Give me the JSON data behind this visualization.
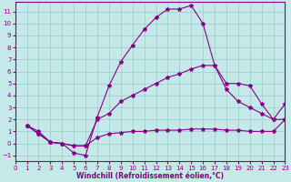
{
  "xlabel": "Windchill (Refroidissement éolien,°C)",
  "xlim": [
    0,
    23
  ],
  "ylim": [
    -1.5,
    11.8
  ],
  "xticks": [
    0,
    1,
    2,
    3,
    4,
    5,
    6,
    7,
    8,
    9,
    10,
    11,
    12,
    13,
    14,
    15,
    16,
    17,
    18,
    19,
    20,
    21,
    22,
    23
  ],
  "yticks": [
    -1,
    0,
    1,
    2,
    3,
    4,
    5,
    6,
    7,
    8,
    9,
    10,
    11
  ],
  "bg_color": "#c5e8e8",
  "line_color": "#880088",
  "line1_x": [
    1,
    2,
    3,
    4,
    5,
    6,
    7,
    8,
    9,
    10,
    11,
    12,
    13,
    14,
    15,
    16,
    17,
    18,
    19,
    20,
    21,
    22,
    23
  ],
  "line1_y": [
    1.5,
    1.0,
    0.1,
    0.0,
    -0.8,
    -1.0,
    2.2,
    4.8,
    6.8,
    8.2,
    9.5,
    10.5,
    11.2,
    11.2,
    11.5,
    10.0,
    6.5,
    5.0,
    5.0,
    4.8,
    3.3,
    2.0,
    3.3
  ],
  "line2_x": [
    1,
    2,
    3,
    4,
    5,
    6,
    7,
    8,
    9,
    10,
    11,
    12,
    13,
    14,
    15,
    16,
    17,
    18,
    19,
    20,
    21,
    22,
    23
  ],
  "line2_y": [
    1.5,
    0.8,
    0.1,
    0.0,
    -0.2,
    -0.2,
    2.0,
    2.5,
    3.5,
    4.0,
    4.5,
    5.0,
    5.5,
    5.8,
    6.2,
    6.5,
    6.5,
    4.5,
    3.5,
    3.0,
    2.5,
    2.0,
    2.0
  ],
  "line3_x": [
    1,
    2,
    3,
    4,
    5,
    6,
    7,
    8,
    9,
    10,
    11,
    12,
    13,
    14,
    15,
    16,
    17,
    18,
    19,
    20,
    21,
    22,
    23
  ],
  "line3_y": [
    1.5,
    0.8,
    0.1,
    0.0,
    -0.2,
    -0.2,
    0.5,
    0.8,
    0.9,
    1.0,
    1.0,
    1.1,
    1.1,
    1.1,
    1.2,
    1.2,
    1.2,
    1.1,
    1.1,
    1.0,
    1.0,
    1.0,
    2.0
  ],
  "grid_color": "#99cccc",
  "marker": "*",
  "markersize": 3.0,
  "linewidth": 0.8,
  "tick_fontsize": 5.0,
  "xlabel_fontsize": 5.5
}
